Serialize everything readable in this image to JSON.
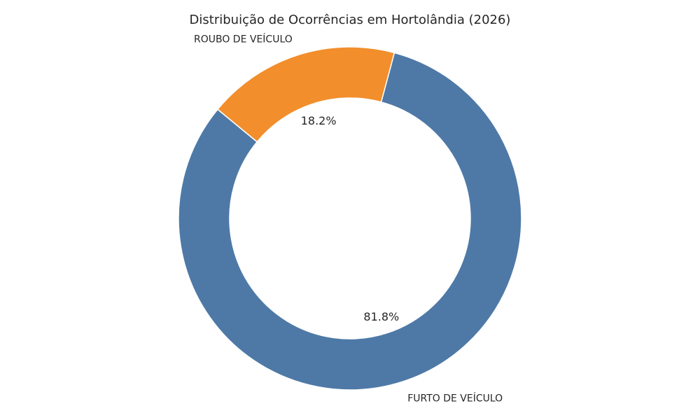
{
  "chart_data": {
    "type": "pie",
    "variant": "donut",
    "title": "Distribuição de Ocorrências em Hortolândia (2026)",
    "slices": [
      {
        "label": "FURTO DE VEÍCULO",
        "value": 81.8,
        "percent_label": "81.8%",
        "color": "#4e79a7"
      },
      {
        "label": "ROUBO DE VEÍCULO",
        "value": 18.2,
        "percent_label": "18.2%",
        "color": "#f28e2b"
      }
    ],
    "legend": "none"
  }
}
